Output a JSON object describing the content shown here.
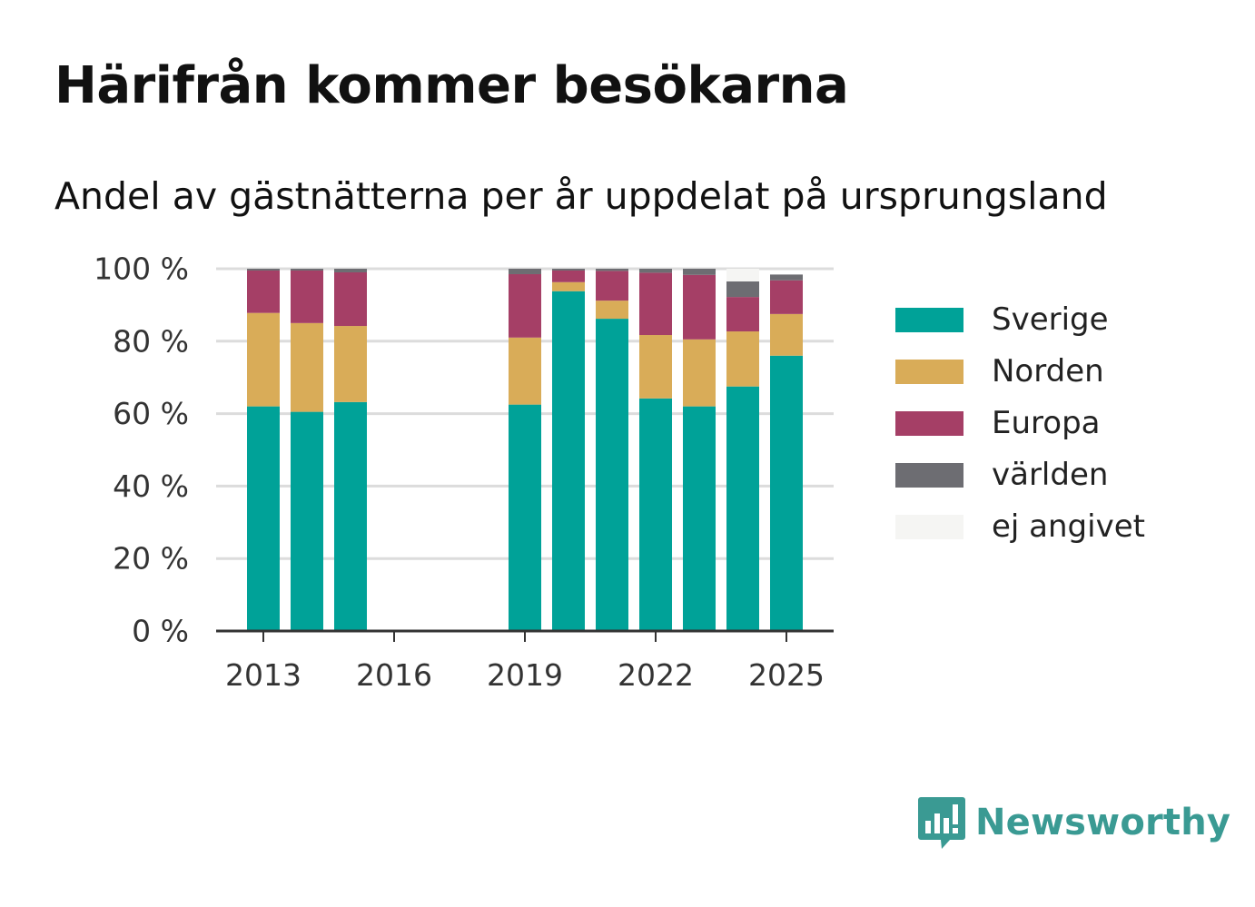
{
  "title": "Härifrån kommer besökarna",
  "subtitle": "Andel av gästnätterna per år uppdelat på ursprungsland",
  "brand": {
    "name": "Newsworthy",
    "color": "#3a9a93",
    "icon": "bar-chart-speech-bubble-icon"
  },
  "chart_data": {
    "type": "bar",
    "stacked": true,
    "x": [
      2013,
      2014,
      2015,
      2016,
      2017,
      2018,
      2019,
      2020,
      2021,
      2022,
      2023,
      2024,
      2025
    ],
    "x_ticks": [
      "2013",
      "2016",
      "2019",
      "2022",
      "2025"
    ],
    "y_ticks": [
      "0 %",
      "20 %",
      "40 %",
      "60 %",
      "80 %",
      "100 %"
    ],
    "ylim": [
      0,
      100
    ],
    "grid": true,
    "legend_position": "right",
    "series": [
      {
        "name": "Sverige",
        "color": "#00a298",
        "values": [
          62,
          60.5,
          63.2,
          null,
          null,
          null,
          62.5,
          93.8,
          86.2,
          64.2,
          62,
          67.5,
          76
        ]
      },
      {
        "name": "Norden",
        "color": "#d9ac58",
        "values": [
          25.8,
          24.5,
          21,
          null,
          null,
          null,
          18.5,
          2.5,
          5,
          17.5,
          18.5,
          15.2,
          11.5
        ]
      },
      {
        "name": "Europa",
        "color": "#a53f66",
        "values": [
          11.7,
          14.5,
          14.8,
          null,
          null,
          null,
          17.5,
          3.2,
          8.2,
          17.2,
          17.8,
          9.5,
          9.3
        ]
      },
      {
        "name": "världen",
        "color": "#6d6d72",
        "values": [
          0.5,
          0.5,
          1,
          null,
          null,
          null,
          1.5,
          0.5,
          0.6,
          1.1,
          1.7,
          4.3,
          1.6
        ]
      },
      {
        "name": "ej angivet",
        "color": "#f5f5f3",
        "values": [
          0,
          0,
          0,
          null,
          null,
          null,
          0,
          0,
          0,
          0,
          0,
          3.5,
          0
        ]
      }
    ]
  }
}
